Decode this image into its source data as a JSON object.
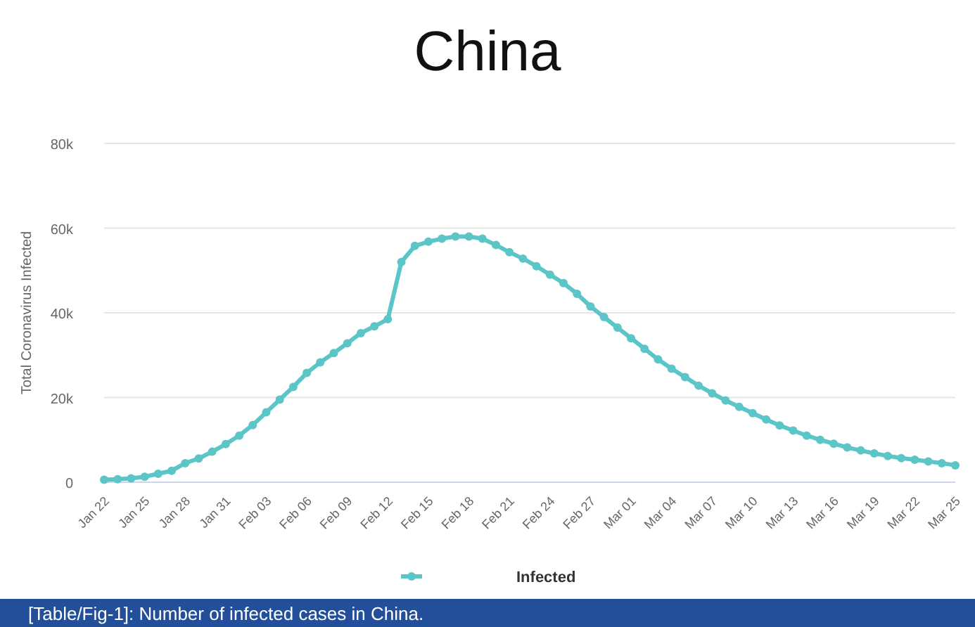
{
  "chart_data": {
    "type": "line",
    "title": "China",
    "ylabel": "Total Coronavirus  Infected",
    "x": [
      "--01-22",
      "--01-23",
      "--01-24",
      "--01-25",
      "--01-26",
      "--01-27",
      "--01-28",
      "--01-29",
      "--01-30",
      "--01-31",
      "--02-01",
      "--02-02",
      "--02-03",
      "--02-04",
      "--02-05",
      "--02-06",
      "--02-07",
      "--02-08",
      "--02-09",
      "--02-10",
      "--02-11",
      "--02-12",
      "--02-13",
      "--02-14",
      "--02-15",
      "--02-16",
      "--02-17",
      "--02-18",
      "--02-19",
      "--02-20",
      "--02-21",
      "--02-22",
      "--02-23",
      "--02-24",
      "--02-25",
      "--02-26",
      "--02-27",
      "--02-28",
      "--02-29",
      "--03-01",
      "--03-02",
      "--03-03",
      "--03-04",
      "--03-05",
      "--03-06",
      "--03-07",
      "--03-08",
      "--03-09",
      "--03-10",
      "--03-11",
      "--03-12",
      "--03-13",
      "--03-14",
      "--03-15",
      "--03-16",
      "--03-17",
      "--03-18",
      "--03-19",
      "--03-20",
      "--03-21",
      "--03-22",
      "--03-23",
      "--03-24",
      "--03-25"
    ],
    "series": [
      {
        "name": "Infected",
        "color": "#5bc5c8",
        "values": [
          600,
          700,
          900,
          1300,
          2000,
          2700,
          4500,
          5600,
          7200,
          9000,
          11000,
          13500,
          16500,
          19500,
          22500,
          25800,
          28300,
          30500,
          32800,
          35200,
          36800,
          38500,
          52000,
          55800,
          56800,
          57500,
          58000,
          58000,
          57500,
          56000,
          54300,
          52800,
          51000,
          49000,
          47000,
          44500,
          41500,
          39000,
          36500,
          34000,
          31500,
          29000,
          26800,
          24800,
          22800,
          21000,
          19300,
          17800,
          16300,
          14800,
          13400,
          12200,
          11000,
          10000,
          9100,
          8200,
          7500,
          6800,
          6200,
          5700,
          5300,
          4900,
          4500,
          4000
        ]
      }
    ],
    "xlim": [
      "--01-22",
      "--03-25"
    ],
    "xticks": [
      {
        "value": "--01-22",
        "label": "Jan 22"
      },
      {
        "value": "--01-25",
        "label": "Jan 25"
      },
      {
        "value": "--01-28",
        "label": "Jan 28"
      },
      {
        "value": "--01-31",
        "label": "Jan 31"
      },
      {
        "value": "--02-03",
        "label": "Feb 03"
      },
      {
        "value": "--02-06",
        "label": "Feb 06"
      },
      {
        "value": "--02-09",
        "label": "Feb 09"
      },
      {
        "value": "--02-12",
        "label": "Feb 12"
      },
      {
        "value": "--02-15",
        "label": "Feb 15"
      },
      {
        "value": "--02-18",
        "label": "Feb 18"
      },
      {
        "value": "--02-21",
        "label": "Feb 21"
      },
      {
        "value": "--02-24",
        "label": "Feb 24"
      },
      {
        "value": "--02-27",
        "label": "Feb 27"
      },
      {
        "value": "--03-01",
        "label": "Mar 01"
      },
      {
        "value": "--03-04",
        "label": "Mar 04"
      },
      {
        "value": "--03-07",
        "label": "Mar 07"
      },
      {
        "value": "--03-10",
        "label": "Mar 10"
      },
      {
        "value": "--03-13",
        "label": "Mar 13"
      },
      {
        "value": "--03-16",
        "label": "Mar 16"
      },
      {
        "value": "--03-19",
        "label": "Mar 19"
      },
      {
        "value": "--03-22",
        "label": "Mar 22"
      },
      {
        "value": "--03-25",
        "label": "Mar 25"
      }
    ],
    "ylim": [
      0,
      80000
    ],
    "yticks": [
      {
        "value": 0,
        "label": "0"
      },
      {
        "value": 20000,
        "label": "20k"
      },
      {
        "value": 40000,
        "label": "40k"
      },
      {
        "value": 60000,
        "label": "60k"
      },
      {
        "value": 80000,
        "label": "80k"
      }
    ],
    "grid": "y",
    "legend": "bottom",
    "marker": "circle",
    "line_style": "solid",
    "annotations": [
      "[Table/Fig-1]: Number of infected cases in China."
    ]
  }
}
